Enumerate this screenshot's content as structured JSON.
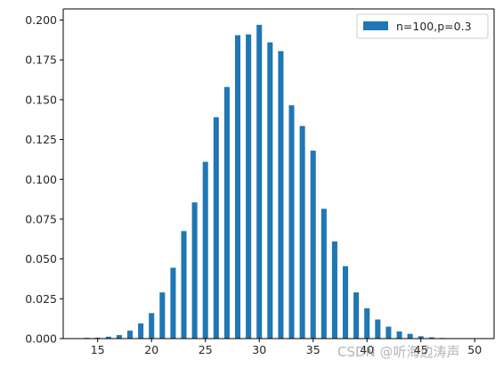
{
  "chart_data": {
    "type": "bar",
    "series": [
      {
        "name": "n=100,p=0.3",
        "color": "#1f77b4",
        "x": [
          14,
          15,
          16,
          17,
          18,
          19,
          20,
          21,
          22,
          23,
          24,
          25,
          26,
          27,
          28,
          29,
          30,
          31,
          32,
          33,
          34,
          35,
          36,
          37,
          38,
          39,
          40,
          41,
          42,
          43,
          44,
          45,
          46,
          47,
          48,
          49,
          50
        ],
        "values": [
          0.0005,
          0.0006,
          0.0012,
          0.0022,
          0.005,
          0.0095,
          0.016,
          0.029,
          0.0445,
          0.0675,
          0.0855,
          0.111,
          0.139,
          0.158,
          0.1905,
          0.191,
          0.197,
          0.186,
          0.1805,
          0.1465,
          0.1335,
          0.118,
          0.0815,
          0.061,
          0.0455,
          0.029,
          0.019,
          0.012,
          0.0075,
          0.0045,
          0.003,
          0.0015,
          0.0008,
          0.0004,
          0.0002,
          0.0001,
          0.0001
        ]
      }
    ],
    "xlim": [
      11.8,
      51.8
    ],
    "ylim": [
      0,
      0.207
    ],
    "x_ticks": [
      15,
      20,
      25,
      30,
      35,
      40,
      45,
      50
    ],
    "x_tick_labels": [
      "15",
      "20",
      "25",
      "30",
      "35",
      "40",
      "45",
      "50"
    ],
    "y_ticks": [
      0,
      0.025,
      0.05,
      0.075,
      0.1,
      0.125,
      0.15,
      0.175,
      0.2
    ],
    "y_tick_labels": [
      "0.000",
      "0.025",
      "0.050",
      "0.075",
      "0.100",
      "0.125",
      "0.150",
      "0.175",
      "0.200"
    ],
    "bar_width_fraction": 0.5,
    "grid": false,
    "legend_position": "top-right"
  },
  "watermark": "CSDN @听海边涛声"
}
